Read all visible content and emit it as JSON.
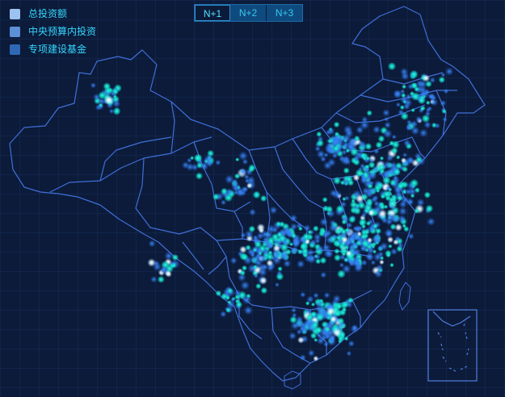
{
  "legend": {
    "items": [
      {
        "label": "总投资额",
        "color": "#9cc3f0"
      },
      {
        "label": "中央预算内投资",
        "color": "#5b8fd6"
      },
      {
        "label": "专项建设基金",
        "color": "#2f68b5"
      }
    ]
  },
  "period_tabs": [
    {
      "label": "N+1",
      "active": true
    },
    {
      "label": "N+2",
      "active": false
    },
    {
      "label": "N+3",
      "active": false
    }
  ],
  "colors": {
    "background": "#0c1b3a",
    "border": "#3f6fd8",
    "dot_blue": "#2f7df3",
    "dot_cyan": "#14e0c8",
    "dot_white": "#ffffff"
  }
}
